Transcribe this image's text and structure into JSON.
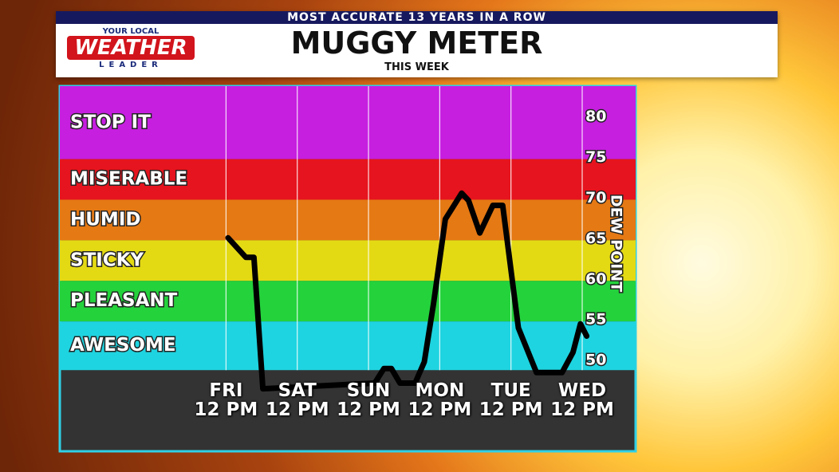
{
  "header": {
    "banner": "MOST ACCURATE 13 YEARS IN A ROW",
    "logo_top": "YOUR LOCAL",
    "logo_main": "WEATHER",
    "logo_bottom": "LEADER"
  },
  "chart_data": {
    "type": "line",
    "title": "MUGGY METER",
    "subtitle": "THIS WEEK",
    "y_label": "DEW POINT",
    "x": [
      0.7,
      6.7,
      9.4,
      12.4,
      50.1,
      53.2,
      55.7,
      58.6,
      63.7,
      66.8,
      69.9,
      73.9,
      79.4,
      81.7,
      85.5,
      89.9,
      93.2,
      98.5,
      104.6,
      113.2,
      116.9,
      119.4,
      121.5
    ],
    "values": [
      65.3,
      62.9,
      62.9,
      46.7,
      47.4,
      49.2,
      49.2,
      47.4,
      47.4,
      50,
      57.2,
      67.6,
      70.8,
      69.9,
      65.9,
      69.3,
      69.3,
      54.2,
      48.7,
      48.7,
      51.2,
      54.7,
      53.2
    ],
    "color": "#000000",
    "xlim": [
      -56,
      138
    ],
    "xticks": [
      {
        "value": 0,
        "label": "FRI\n12 PM"
      },
      {
        "value": 24,
        "label": "SAT\n12 PM"
      },
      {
        "value": 48,
        "label": "SUN\n12 PM"
      },
      {
        "value": 72,
        "label": "MON\n12 PM"
      },
      {
        "value": 96,
        "label": "TUE\n12 PM"
      },
      {
        "value": 120,
        "label": "WED\n12 PM"
      }
    ],
    "ylim": [
      39,
      84
    ],
    "yticks": [
      50,
      55,
      60,
      65,
      70,
      75,
      80
    ],
    "grid": true,
    "bands": [
      {
        "label": "STOP IT",
        "color": "#c61fe0",
        "range": [
          75,
          84
        ]
      },
      {
        "label": "MISERABLE",
        "color": "#e6141e",
        "range": [
          70,
          75
        ]
      },
      {
        "label": "HUMID",
        "color": "#e57914",
        "range": [
          65,
          70
        ]
      },
      {
        "label": "STICKY",
        "color": "#e4da14",
        "range": [
          60,
          65
        ]
      },
      {
        "label": "PLEASANT",
        "color": "#24d23c",
        "range": [
          55,
          60
        ]
      },
      {
        "label": "AWESOME",
        "color": "#1ed4e0",
        "range": [
          49,
          55
        ]
      }
    ]
  }
}
